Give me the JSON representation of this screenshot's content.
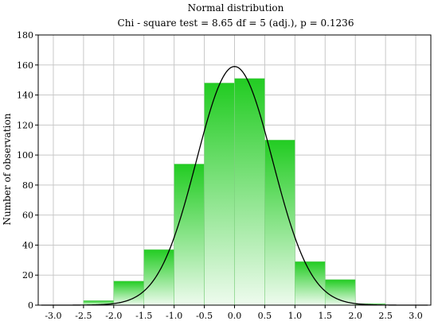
{
  "chart_data": {
    "type": "bar",
    "title": "Normal distribution",
    "subtitle": "Chi - square test = 8.65 df = 5 (adj.), p = 0.1236",
    "xlabel": "",
    "ylabel": "Number of observation",
    "xlim": [
      -3.25,
      3.25
    ],
    "ylim": [
      0,
      180
    ],
    "x_ticks": [
      "-3.0",
      "-2.5",
      "-2.0",
      "-1.5",
      "-1.0",
      "-0.5",
      "0.0",
      "0.5",
      "1.0",
      "1.5",
      "2.0",
      "2.5",
      "3.0"
    ],
    "y_ticks": [
      "0",
      "20",
      "40",
      "60",
      "80",
      "100",
      "120",
      "140",
      "160",
      "180"
    ],
    "grid": true,
    "bins": [
      {
        "from": -2.5,
        "to": -2.0,
        "value": 3
      },
      {
        "from": -2.0,
        "to": -1.5,
        "value": 16
      },
      {
        "from": -1.5,
        "to": -1.0,
        "value": 37
      },
      {
        "from": -1.0,
        "to": -0.5,
        "value": 94
      },
      {
        "from": -0.5,
        "to": 0.0,
        "value": 148
      },
      {
        "from": 0.0,
        "to": 0.5,
        "value": 151
      },
      {
        "from": 0.5,
        "to": 1.0,
        "value": 110
      },
      {
        "from": 1.0,
        "to": 1.5,
        "value": 29
      },
      {
        "from": 1.5,
        "to": 2.0,
        "value": 17
      },
      {
        "from": 2.0,
        "to": 2.5,
        "value": 1
      }
    ],
    "fitted_curve": {
      "type": "normal",
      "mean": 0.0,
      "sd": 0.63,
      "peak": 159
    },
    "colors": {
      "bar_top": "#22cc22",
      "bar_bottom": "#eefbee",
      "curve": "#000000",
      "grid": "#c8c8c8"
    }
  }
}
